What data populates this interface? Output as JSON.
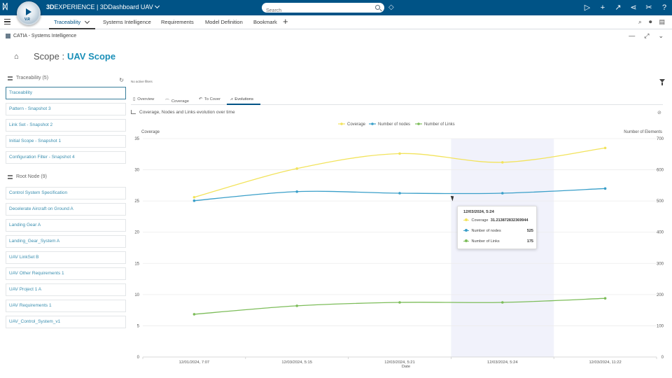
{
  "app": {
    "brand_bold": "3D",
    "brand_main": "EXPERIENCE | 3DDashboard",
    "brand_context": "UAV",
    "compass_version": "V.R",
    "search_placeholder": "Search"
  },
  "top_icons": [
    "play-icon",
    "add-icon",
    "share-icon",
    "network-icon",
    "tools-icon",
    "help-icon"
  ],
  "tabs": {
    "items": [
      {
        "label": "Traceability",
        "active": true
      },
      {
        "label": "Systems Intelligence"
      },
      {
        "label": "Requirements"
      },
      {
        "label": "Model Definition"
      },
      {
        "label": "Bookmark"
      }
    ]
  },
  "widget": {
    "title": "CATIA - Systems Intelligence"
  },
  "scope": {
    "label": "Scope :",
    "value": "UAV Scope"
  },
  "sidebar": {
    "traceability_header": "Traceability (5)",
    "traceability_items": [
      "Traceability",
      "Pattern - Snapshot 3",
      "Link Set - Snapshot 2",
      "Initial Scope - Snapshot 1",
      "Configuration Filter - Snapshot 4"
    ],
    "root_header": "Root Node (9)",
    "root_items": [
      "Control System Specification",
      "Decelerate Aircraft on Ground A",
      "Landing Gear A",
      "Landing_Gear_System A",
      "UAV LinkSet B",
      "UAV Other Requirements 1",
      "UAV Project 1 A",
      "UAV Requirements 1",
      "UAV_Control_System_v1"
    ]
  },
  "filters_text": "No active filters",
  "subtabs": [
    "Overview",
    "Coverage",
    "To Cover",
    "Evolutions"
  ],
  "chart_title": "Coverage, Nodes and Links evolution over time",
  "colors": {
    "coverage": "#f2e35c",
    "nodes": "#3a9fc9",
    "links": "#7dbd5a",
    "brand": "#005386",
    "highlight": "#f1f2fb"
  },
  "chart_data": {
    "type": "line",
    "x": [
      "12/01/2024, 7:07",
      "12/03/2024, 5:15",
      "12/03/2024, 5:21",
      "12/03/2024, 5:24",
      "12/03/2024, 11:22"
    ],
    "xlabel": "Date",
    "ylabel_left": "Coverage",
    "ylabel_right": "Number of Elements",
    "ylim_left": [
      0,
      35
    ],
    "yticks_left": [
      0,
      5,
      10,
      15,
      20,
      25,
      30,
      35
    ],
    "ylim_right": [
      0,
      700
    ],
    "yticks_right": [
      0,
      100,
      200,
      300,
      400,
      500,
      600,
      700
    ],
    "legend_position": "top",
    "grid": true,
    "series": [
      {
        "name": "Coverage",
        "axis": "left",
        "values": [
          25.6,
          30.2,
          32.6,
          31.2,
          33.5
        ]
      },
      {
        "name": "Number of nodes",
        "axis": "right",
        "values": [
          501,
          530,
          525,
          525,
          540
        ]
      },
      {
        "name": "Number of Links",
        "axis": "right",
        "values": [
          137,
          164,
          175,
          175,
          188
        ]
      }
    ],
    "highlight_index": 3
  },
  "tooltip": {
    "title": "12/03/2024, 5:24",
    "rows": [
      {
        "label": "Coverage",
        "value": "31.213872832369944"
      },
      {
        "label": "Number of nodes",
        "value": "525"
      },
      {
        "label": "Number of Links",
        "value": "175"
      }
    ]
  }
}
